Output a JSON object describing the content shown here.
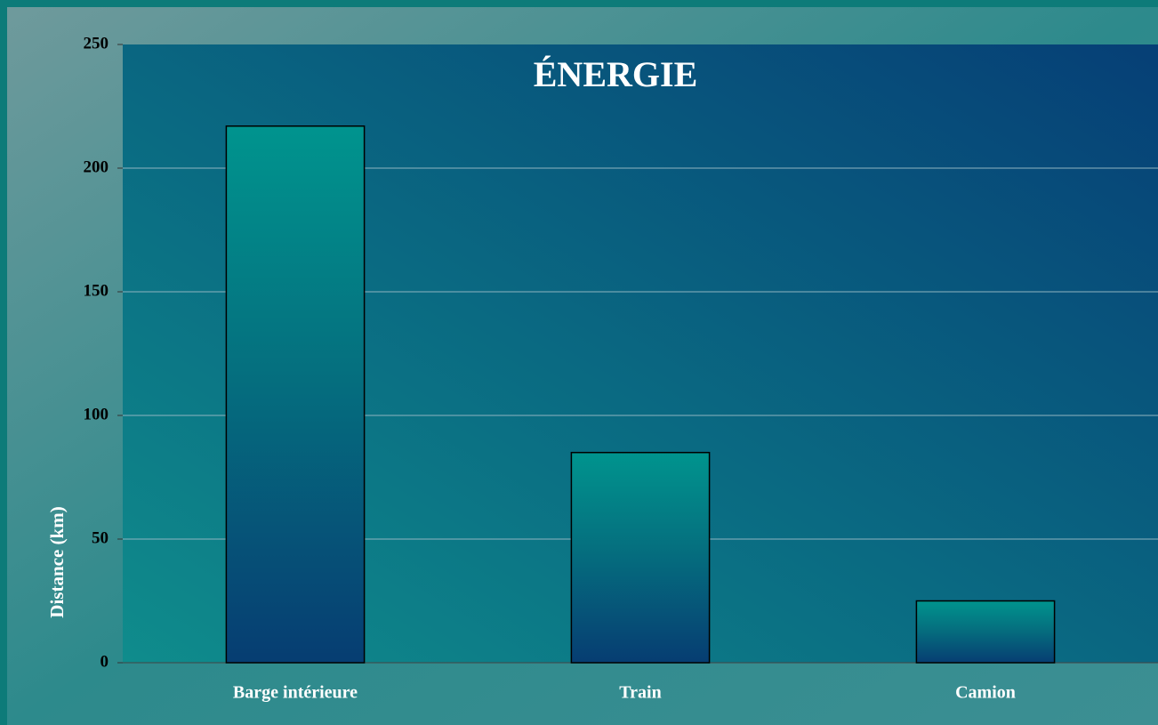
{
  "chart_data": {
    "type": "bar",
    "title": "ÉNERGIE",
    "y_label": "Distance (km)",
    "categories": [
      "Barge intérieure",
      "Train",
      "Camion"
    ],
    "values": [
      217,
      85,
      25
    ],
    "ylim": [
      0,
      250
    ],
    "yticks": [
      0,
      50,
      100,
      150,
      200,
      250
    ],
    "grid": true
  }
}
